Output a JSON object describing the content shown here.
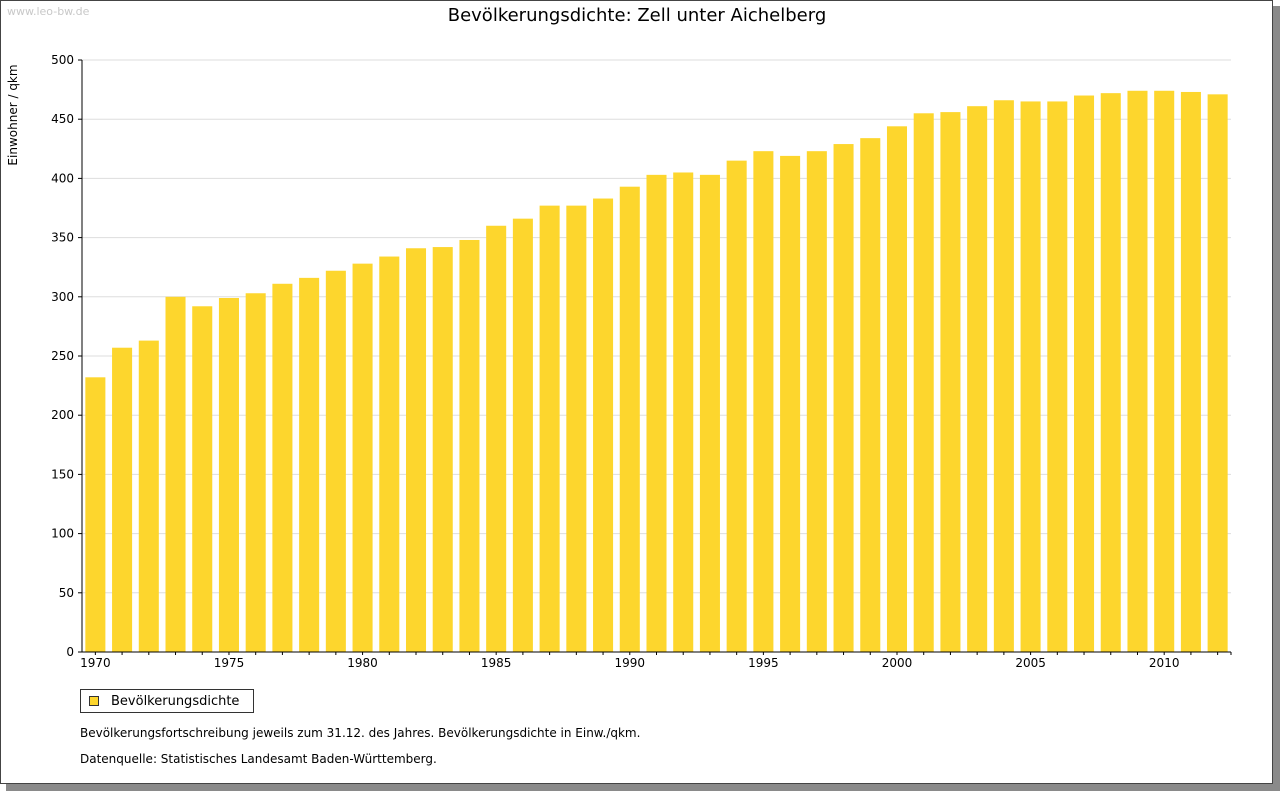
{
  "watermark": "www.leo-bw.de",
  "colors": {
    "bar": "#FDD62D",
    "grid": "#dddddd",
    "axis": "#000000"
  },
  "legend": {
    "label": "Bevölkerungsdichte"
  },
  "footnotes": {
    "note1": "Bevölkerungsfortschreibung jeweils zum 31.12. des Jahres. Bevölkerungsdichte in Einw./qkm.",
    "note2": "Datenquelle: Statistisches Landesamt Baden-Württemberg."
  },
  "chart_data": {
    "type": "bar",
    "title": "Bevölkerungsdichte: Zell unter Aichelberg",
    "xlabel": "",
    "ylabel": "Einwohner / qkm",
    "ylim": [
      0,
      500
    ],
    "yticks": [
      0,
      50,
      100,
      150,
      200,
      250,
      300,
      350,
      400,
      450,
      500
    ],
    "xtick_labels": [
      "1970",
      "1975",
      "1980",
      "1985",
      "1990",
      "1995",
      "2000",
      "2005",
      "2010"
    ],
    "grid": true,
    "legend_position": "bottom-left",
    "categories": [
      1970,
      1971,
      1972,
      1973,
      1974,
      1975,
      1976,
      1977,
      1978,
      1979,
      1980,
      1981,
      1982,
      1983,
      1984,
      1985,
      1986,
      1987,
      1988,
      1989,
      1990,
      1991,
      1992,
      1993,
      1994,
      1995,
      1996,
      1997,
      1998,
      1999,
      2000,
      2001,
      2002,
      2003,
      2004,
      2005,
      2006,
      2007,
      2008,
      2009,
      2010,
      2011,
      2012
    ],
    "series": [
      {
        "name": "Bevölkerungsdichte",
        "values": [
          232,
          257,
          263,
          300,
          292,
          299,
          303,
          311,
          316,
          322,
          328,
          334,
          341,
          342,
          348,
          360,
          366,
          377,
          377,
          383,
          393,
          403,
          405,
          403,
          415,
          423,
          419,
          423,
          429,
          434,
          444,
          455,
          456,
          461,
          466,
          465,
          465,
          470,
          472,
          474,
          474,
          473,
          471
        ]
      }
    ]
  }
}
